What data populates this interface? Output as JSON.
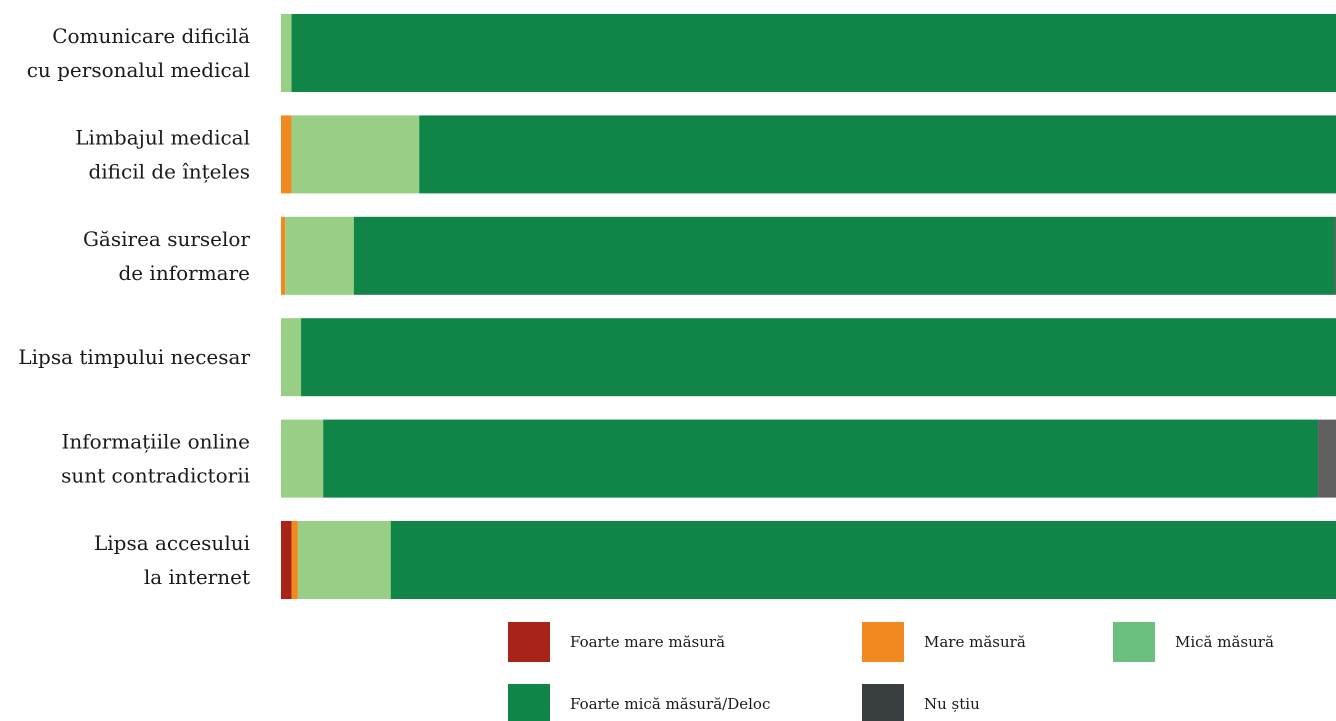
{
  "chart_data": {
    "type": "bar",
    "orientation": "horizontal",
    "stacked": true,
    "percent_stacked": true,
    "grid": false,
    "legend_position": "bottom",
    "title": "",
    "xlabel": "",
    "ylabel": "",
    "xlim": [
      0,
      100
    ],
    "categories": [
      [
        "Comunicare dificilă",
        "cu personalul medical"
      ],
      [
        "Limbajul medical",
        "dificil de înțeles"
      ],
      [
        "Găsirea surselor",
        "de informare"
      ],
      [
        "Lipsa timpului necesar"
      ],
      [
        "Informațiile online",
        "sunt contradictorii"
      ],
      [
        "Lipsa accesului",
        "la internet"
      ]
    ],
    "series": [
      {
        "name": "Foarte mare măsură",
        "color": "#a82418",
        "values": [
          0,
          0,
          0,
          0,
          0,
          1.0
        ]
      },
      {
        "name": "Mare măsură",
        "color": "#f0891f",
        "values": [
          0,
          1.0,
          0.4,
          0,
          0,
          0.6
        ]
      },
      {
        "name": "Mică măsură",
        "color": "#99cf84",
        "values": [
          1.0,
          12.1,
          6.5,
          1.9,
          4.0,
          8.8
        ]
      },
      {
        "name": "Foarte mică măsură/Deloc",
        "color": "#118448",
        "values": [
          99.0,
          86.9,
          93.0,
          98.1,
          94.3,
          89.6
        ]
      },
      {
        "name": "Nu știu",
        "color": "#606060",
        "values": [
          0,
          0,
          0.1,
          0,
          1.7,
          0
        ]
      }
    ],
    "legend": [
      {
        "name": "Foarte mare măsură",
        "color": "#a82418"
      },
      {
        "name": "Mare măsură",
        "color": "#f0891f"
      },
      {
        "name": "Mică măsură",
        "color": "#6cc07f"
      },
      {
        "name": "Foarte mică măsură/Deloc",
        "color": "#118448"
      },
      {
        "name": "Nu știu",
        "color": "#393e41"
      }
    ]
  }
}
